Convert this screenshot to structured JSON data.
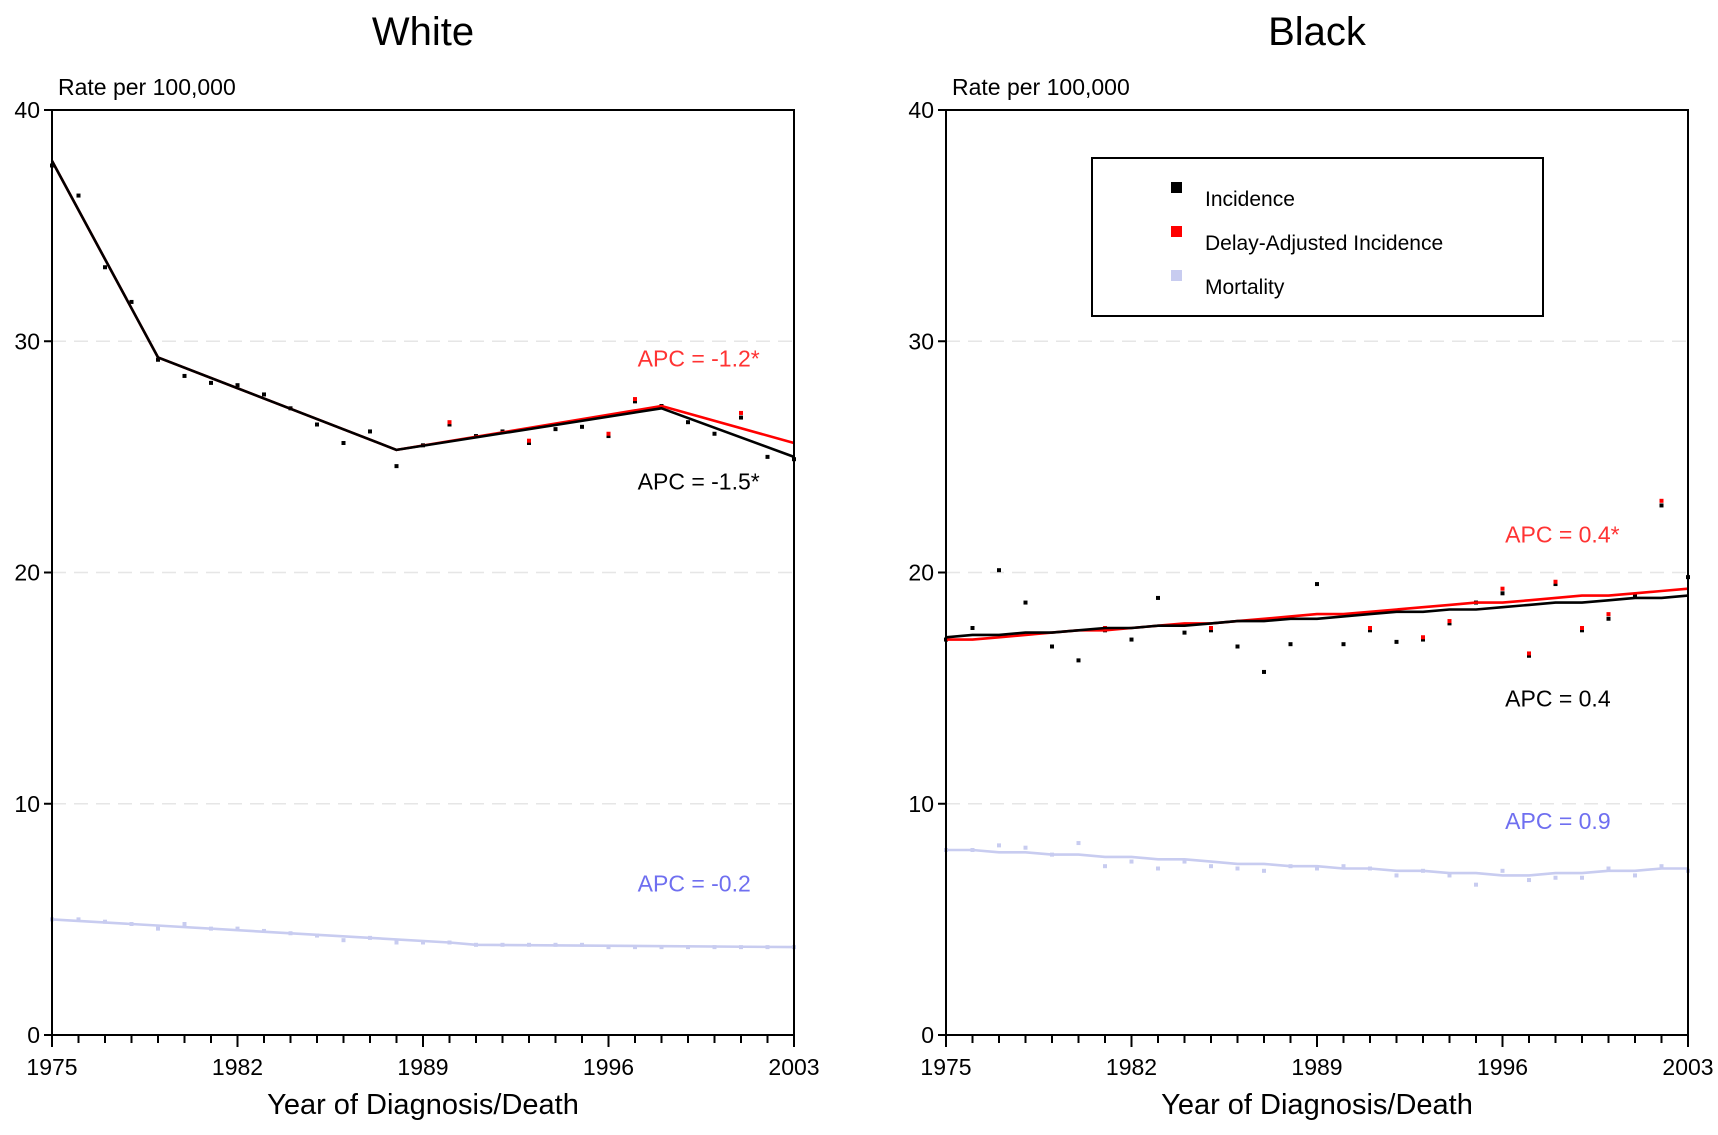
{
  "chart_data": [
    {
      "type": "line",
      "title": "White",
      "ylabel": "Rate per 100,000",
      "xlabel": "Year of Diagnosis/Death",
      "xlim": [
        1975,
        2003
      ],
      "ylim": [
        0,
        40
      ],
      "x_ticks": [
        1975,
        1982,
        1989,
        1996,
        2003
      ],
      "y_ticks": [
        0,
        10,
        20,
        30,
        40
      ],
      "grid": "horizontal dashed",
      "points": [
        {
          "name": "Incidence",
          "color": "#000000",
          "x": [
            1975,
            1976,
            1977,
            1978,
            1979,
            1980,
            1981,
            1982,
            1983,
            1984,
            1985,
            1986,
            1987,
            1988,
            1989,
            1990,
            1991,
            1992,
            1993,
            1994,
            1995,
            1996,
            1997,
            1998,
            1999,
            2000,
            2001,
            2002,
            2003
          ],
          "y": [
            37.6,
            36.3,
            33.2,
            31.7,
            29.2,
            28.5,
            28.2,
            28.1,
            27.7,
            27.1,
            26.4,
            25.6,
            26.1,
            24.6,
            25.5,
            26.4,
            25.9,
            26.1,
            25.6,
            26.2,
            26.3,
            25.9,
            27.4,
            27.2,
            26.5,
            26.0,
            26.7,
            25.0,
            24.9
          ]
        },
        {
          "name": "Delay-Adjusted Incidence",
          "color": "#ff0000",
          "x": [
            1990,
            1993,
            1996,
            1997,
            2001
          ],
          "y": [
            26.5,
            25.7,
            26.0,
            27.5,
            26.9
          ]
        },
        {
          "name": "Mortality",
          "color": "#c8ccf0",
          "x": [
            1975,
            1976,
            1977,
            1978,
            1979,
            1980,
            1981,
            1982,
            1983,
            1984,
            1985,
            1986,
            1987,
            1988,
            1989,
            1990,
            1991,
            1992,
            1993,
            1994,
            1995,
            1996,
            1997,
            1998,
            1999,
            2000,
            2001,
            2002,
            2003
          ],
          "y": [
            5.0,
            5.0,
            4.9,
            4.8,
            4.6,
            4.8,
            4.6,
            4.6,
            4.5,
            4.4,
            4.3,
            4.1,
            4.2,
            4.0,
            4.0,
            4.0,
            3.9,
            3.9,
            3.9,
            3.9,
            3.9,
            3.8,
            3.8,
            3.8,
            3.8,
            3.8,
            3.8,
            3.8,
            3.8
          ]
        }
      ],
      "trends": [
        {
          "name": "Incidence",
          "color": "#000000",
          "x": [
            1975,
            1979,
            1988,
            1998,
            2003
          ],
          "y": [
            37.8,
            29.3,
            25.3,
            27.1,
            25.0
          ]
        },
        {
          "name": "Delay-Adjusted Incidence",
          "color": "#ff0000",
          "x": [
            1975,
            1979,
            1988,
            1998,
            2003
          ],
          "y": [
            37.8,
            29.3,
            25.3,
            27.2,
            25.6
          ]
        },
        {
          "name": "Mortality",
          "color": "#c8ccf0",
          "x": [
            1975,
            1990,
            1991,
            2003
          ],
          "y": [
            5.0,
            4.0,
            3.9,
            3.8
          ]
        }
      ],
      "annotations": [
        {
          "text": "APC = -1.2*",
          "color": "#ff3333",
          "anchor_x": 1997.1,
          "anchor_y": 28.9
        },
        {
          "text": "APC = -1.5*",
          "color": "#000000",
          "anchor_x": 1997.1,
          "anchor_y": 23.6
        },
        {
          "text": "APC = -0.2",
          "color": "#6f6ff0",
          "anchor_x": 1997.1,
          "anchor_y": 6.2
        }
      ]
    },
    {
      "type": "line",
      "title": "Black",
      "ylabel": "Rate per 100,000",
      "xlabel": "Year of Diagnosis/Death",
      "xlim": [
        1975,
        2003
      ],
      "ylim": [
        0,
        40
      ],
      "x_ticks": [
        1975,
        1982,
        1989,
        1996,
        2003
      ],
      "y_ticks": [
        0,
        10,
        20,
        30,
        40
      ],
      "grid": "horizontal dashed",
      "legend": {
        "position": "top-center",
        "entries": [
          {
            "label": "Incidence",
            "color": "#000000"
          },
          {
            "label": "Delay-Adjusted Incidence",
            "color": "#ff0000"
          },
          {
            "label": "Mortality",
            "color": "#c8ccf0"
          }
        ]
      },
      "points": [
        {
          "name": "Incidence",
          "color": "#000000",
          "x": [
            1975,
            1976,
            1977,
            1978,
            1979,
            1980,
            1981,
            1982,
            1983,
            1984,
            1985,
            1986,
            1987,
            1988,
            1989,
            1990,
            1991,
            1992,
            1993,
            1994,
            1995,
            1996,
            1997,
            1998,
            1999,
            2000,
            2001,
            2002,
            2003
          ],
          "y": [
            17.1,
            17.6,
            20.1,
            18.7,
            16.8,
            16.2,
            17.5,
            17.1,
            18.9,
            17.4,
            17.5,
            16.8,
            15.7,
            16.9,
            19.5,
            16.9,
            17.5,
            17.0,
            17.1,
            17.8,
            18.7,
            19.1,
            16.4,
            19.5,
            17.5,
            18.0,
            19.0,
            22.9,
            19.8
          ]
        },
        {
          "name": "Delay-Adjusted Incidence",
          "color": "#ff0000",
          "x": [
            1981,
            1985,
            1991,
            1993,
            1994,
            1996,
            1997,
            1998,
            1999,
            2000,
            2002
          ],
          "y": [
            17.6,
            17.6,
            17.6,
            17.2,
            17.9,
            19.3,
            16.5,
            19.6,
            17.6,
            18.2,
            23.1
          ]
        },
        {
          "name": "Mortality",
          "color": "#c8ccf0",
          "x": [
            1975,
            1976,
            1977,
            1978,
            1979,
            1980,
            1981,
            1982,
            1983,
            1984,
            1985,
            1986,
            1987,
            1988,
            1989,
            1990,
            1991,
            1992,
            1993,
            1994,
            1995,
            1996,
            1997,
            1998,
            1999,
            2000,
            2001,
            2002,
            2003
          ],
          "y": [
            8.0,
            8.0,
            8.2,
            8.1,
            7.8,
            8.3,
            7.3,
            7.5,
            7.2,
            7.5,
            7.3,
            7.2,
            7.1,
            7.3,
            7.2,
            7.3,
            7.2,
            6.9,
            7.1,
            6.9,
            6.5,
            7.1,
            6.7,
            6.8,
            6.8,
            7.2,
            6.9,
            7.3,
            7.1
          ]
        }
      ],
      "trends": [
        {
          "name": "Incidence",
          "color": "#000000",
          "x": [
            1975,
            1976,
            1977,
            1978,
            1979,
            1980,
            1981,
            1982,
            1983,
            1984,
            1985,
            1986,
            1987,
            1988,
            1989,
            1990,
            1991,
            1992,
            1993,
            1994,
            1995,
            1996,
            1997,
            1998,
            1999,
            2000,
            2001,
            2002,
            2003
          ],
          "y": [
            17.2,
            17.3,
            17.3,
            17.4,
            17.4,
            17.5,
            17.6,
            17.6,
            17.7,
            17.7,
            17.8,
            17.9,
            17.9,
            18.0,
            18.0,
            18.1,
            18.2,
            18.3,
            18.3,
            18.4,
            18.4,
            18.5,
            18.6,
            18.7,
            18.7,
            18.8,
            18.9,
            18.9,
            19.0
          ]
        },
        {
          "name": "Delay-Adjusted Incidence",
          "color": "#ff0000",
          "x": [
            1975,
            1976,
            1977,
            1978,
            1979,
            1980,
            1981,
            1982,
            1983,
            1984,
            1985,
            1986,
            1987,
            1988,
            1989,
            1990,
            1991,
            1992,
            1993,
            1994,
            1995,
            1996,
            1997,
            1998,
            1999,
            2000,
            2001,
            2002,
            2003
          ],
          "y": [
            17.1,
            17.1,
            17.2,
            17.3,
            17.4,
            17.5,
            17.5,
            17.6,
            17.7,
            17.8,
            17.8,
            17.9,
            18.0,
            18.1,
            18.2,
            18.2,
            18.3,
            18.4,
            18.5,
            18.6,
            18.7,
            18.7,
            18.8,
            18.9,
            19.0,
            19.0,
            19.1,
            19.2,
            19.3
          ]
        },
        {
          "name": "Mortality",
          "color": "#c8ccf0",
          "x": [
            1975,
            1976,
            1977,
            1978,
            1979,
            1980,
            1981,
            1982,
            1983,
            1984,
            1985,
            1986,
            1987,
            1988,
            1989,
            1990,
            1991,
            1992,
            1993,
            1994,
            1995,
            1996,
            1997,
            1998,
            1999,
            2000,
            2001,
            2002,
            2003
          ],
          "y": [
            8.0,
            8.0,
            7.9,
            7.9,
            7.8,
            7.8,
            7.7,
            7.7,
            7.6,
            7.6,
            7.5,
            7.4,
            7.4,
            7.3,
            7.3,
            7.2,
            7.2,
            7.1,
            7.1,
            7.0,
            7.0,
            6.9,
            6.9,
            7.0,
            7.0,
            7.1,
            7.1,
            7.2,
            7.2
          ]
        }
      ],
      "annotations": [
        {
          "text": "APC = 0.4*",
          "color": "#ff3333",
          "anchor_x": 1996.1,
          "anchor_y": 21.3
        },
        {
          "text": "APC = 0.4",
          "color": "#000000",
          "anchor_x": 1996.1,
          "anchor_y": 14.2
        },
        {
          "text": "APC = 0.9",
          "color": "#6f6ff0",
          "anchor_x": 1996.1,
          "anchor_y": 8.9
        }
      ]
    }
  ]
}
